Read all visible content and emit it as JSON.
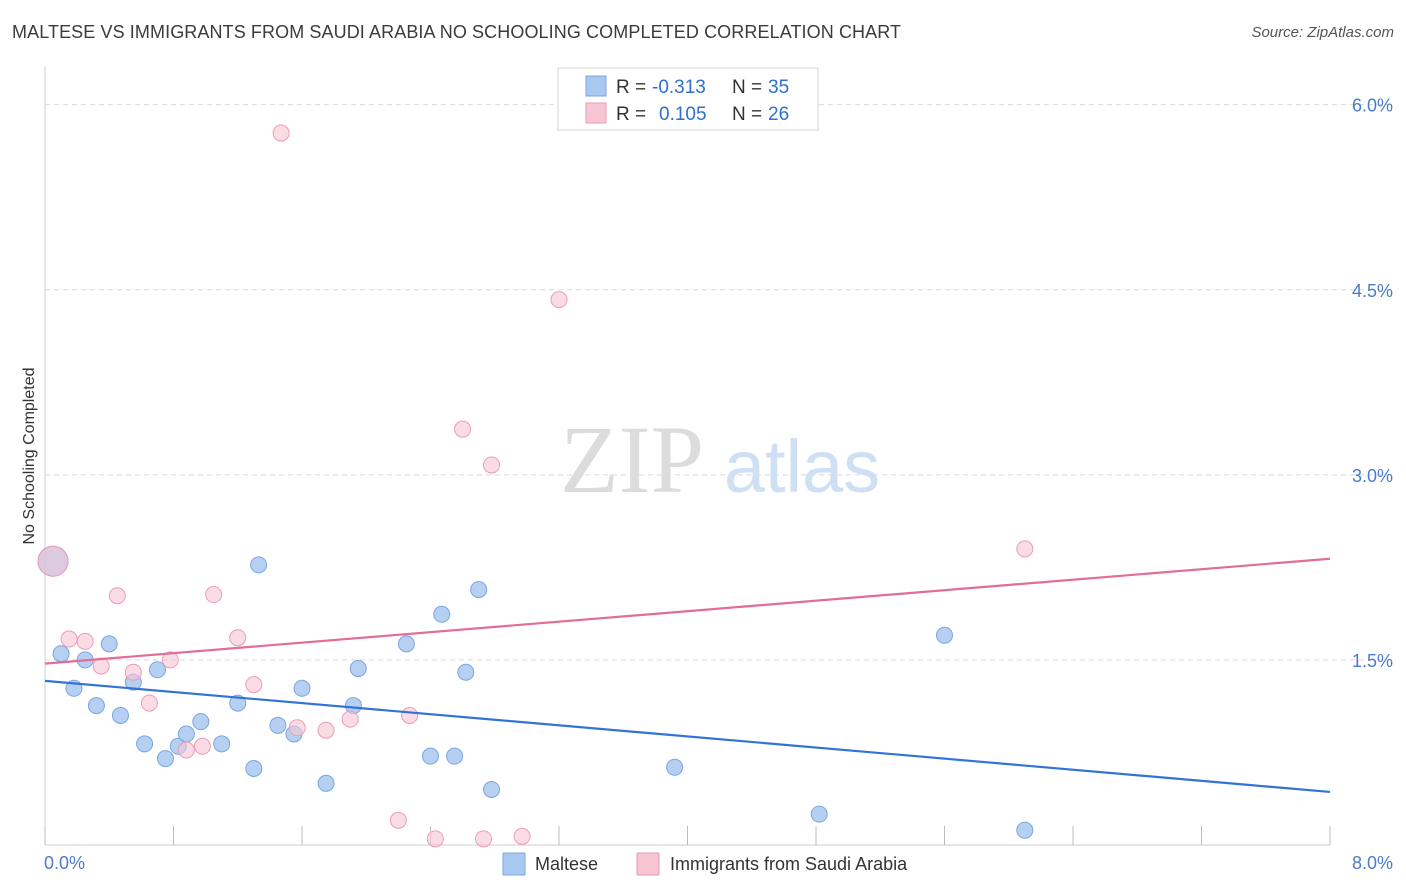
{
  "title": "MALTESE VS IMMIGRANTS FROM SAUDI ARABIA NO SCHOOLING COMPLETED CORRELATION CHART",
  "source": "Source: ZipAtlas.com",
  "watermark": {
    "zip": "ZIP",
    "atlas": "atlas"
  },
  "colors": {
    "blue_fill": "#a9c8f0",
    "blue_stroke": "#7aa6e0",
    "blue_line": "#3173d6",
    "pink_fill": "#f7c5d4",
    "pink_stroke": "#ee9bb6",
    "pink_line": "#e26d96",
    "grid": "#d9d9d9",
    "tick_text": "#4a7cc9"
  },
  "legend": {
    "series": [
      {
        "r_label": "R =",
        "r_value": "-0.313",
        "n_label": "N =",
        "n_value": "35"
      },
      {
        "r_label": "R =",
        "r_value": "0.105",
        "n_label": "N =",
        "n_value": "26"
      }
    ]
  },
  "chart_data": {
    "type": "scatter",
    "xlabel": "",
    "ylabel": "No Schooling Completed",
    "xlim": [
      0,
      8
    ],
    "ylim": [
      0,
      6.2
    ],
    "x_tick_labels": [
      "0.0%",
      "8.0%"
    ],
    "y_ticks": [
      1.5,
      3.0,
      4.5,
      6.0
    ],
    "y_tick_labels": [
      "1.5%",
      "3.0%",
      "4.5%",
      "6.0%"
    ],
    "grid": "horizontal dashed",
    "legend_position": "top-center",
    "series": [
      {
        "name": "Maltese",
        "trend": {
          "x": [
            0,
            8
          ],
          "y": [
            1.33,
            0.43
          ]
        },
        "points": [
          [
            0.05,
            2.3
          ],
          [
            0.1,
            1.55
          ],
          [
            0.18,
            1.27
          ],
          [
            0.25,
            1.5
          ],
          [
            0.32,
            1.13
          ],
          [
            0.4,
            1.63
          ],
          [
            0.47,
            1.05
          ],
          [
            0.55,
            1.32
          ],
          [
            0.62,
            0.82
          ],
          [
            0.7,
            1.42
          ],
          [
            0.75,
            0.7
          ],
          [
            0.83,
            0.8
          ],
          [
            0.88,
            0.9
          ],
          [
            0.97,
            1.0
          ],
          [
            1.1,
            0.82
          ],
          [
            1.2,
            1.15
          ],
          [
            1.3,
            0.62
          ],
          [
            1.33,
            2.27
          ],
          [
            1.45,
            0.97
          ],
          [
            1.55,
            0.9
          ],
          [
            1.6,
            1.27
          ],
          [
            1.75,
            0.5
          ],
          [
            1.92,
            1.13
          ],
          [
            1.95,
            1.43
          ],
          [
            2.25,
            1.63
          ],
          [
            2.4,
            0.72
          ],
          [
            2.47,
            1.87
          ],
          [
            2.55,
            0.72
          ],
          [
            2.62,
            1.4
          ],
          [
            2.7,
            2.07
          ],
          [
            2.78,
            0.45
          ],
          [
            3.92,
            0.63
          ],
          [
            4.82,
            0.25
          ],
          [
            5.6,
            1.7
          ],
          [
            6.1,
            0.12
          ]
        ]
      },
      {
        "name": "Immigrants from Saudi Arabia",
        "trend": {
          "x": [
            0,
            8
          ],
          "y": [
            1.47,
            2.32
          ]
        },
        "points": [
          [
            0.05,
            2.3
          ],
          [
            0.15,
            1.67
          ],
          [
            0.25,
            1.65
          ],
          [
            0.35,
            1.45
          ],
          [
            0.45,
            2.02
          ],
          [
            0.55,
            1.4
          ],
          [
            0.65,
            1.15
          ],
          [
            0.78,
            1.5
          ],
          [
            0.88,
            0.77
          ],
          [
            0.98,
            0.8
          ],
          [
            1.05,
            2.03
          ],
          [
            1.2,
            1.68
          ],
          [
            1.3,
            1.3
          ],
          [
            1.47,
            5.77
          ],
          [
            1.57,
            0.95
          ],
          [
            1.75,
            0.93
          ],
          [
            1.9,
            1.02
          ],
          [
            2.2,
            0.2
          ],
          [
            2.27,
            1.05
          ],
          [
            2.43,
            0.05
          ],
          [
            2.6,
            3.37
          ],
          [
            2.73,
            0.05
          ],
          [
            2.78,
            3.08
          ],
          [
            2.97,
            0.07
          ],
          [
            3.2,
            4.42
          ],
          [
            6.1,
            2.4
          ]
        ]
      }
    ]
  }
}
